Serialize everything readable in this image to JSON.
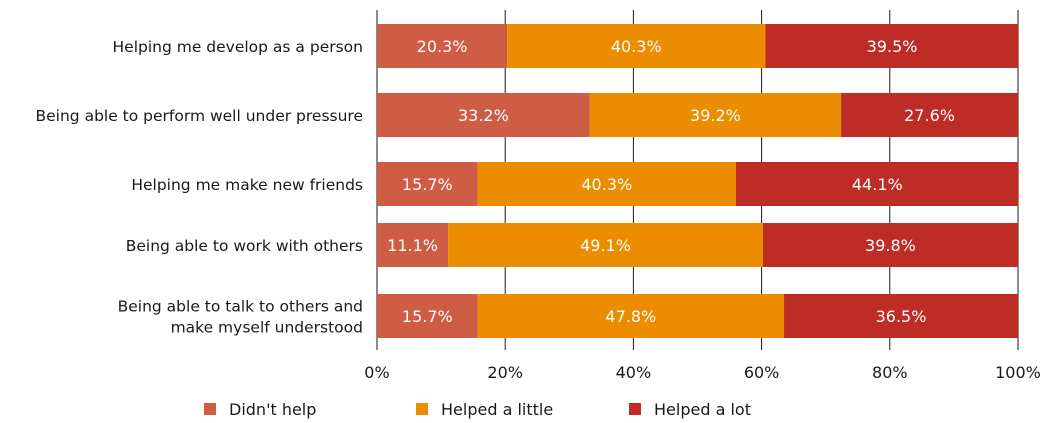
{
  "chart_data": {
    "type": "bar",
    "orientation": "horizontal",
    "stacked": true,
    "categories": [
      [
        "Helping me develop as a person"
      ],
      [
        "Being able to perform well under pressure"
      ],
      [
        "Helping me make new friends"
      ],
      [
        "Being able to work with others"
      ],
      [
        "Being able to talk to others and",
        "make myself understood"
      ]
    ],
    "series": [
      {
        "name": "Didn't help",
        "color": "#cf5d45",
        "values": [
          20.3,
          33.2,
          15.7,
          11.1,
          15.7
        ]
      },
      {
        "name": "Helped a little",
        "color": "#ec8c00",
        "values": [
          40.3,
          39.2,
          40.3,
          49.1,
          47.8
        ]
      },
      {
        "name": "Helped a lot",
        "color": "#bd2c25",
        "values": [
          39.5,
          27.6,
          44.1,
          39.8,
          36.5
        ]
      }
    ],
    "value_suffix": "%",
    "xlim": [
      0,
      100
    ],
    "xticks": [
      0,
      20,
      40,
      60,
      80,
      100
    ],
    "xtick_labels": [
      "0%",
      "20%",
      "40%",
      "60%",
      "80%",
      "100%"
    ],
    "grid": true,
    "legend_position": "bottom",
    "title": "",
    "xlabel": "",
    "ylabel": ""
  }
}
